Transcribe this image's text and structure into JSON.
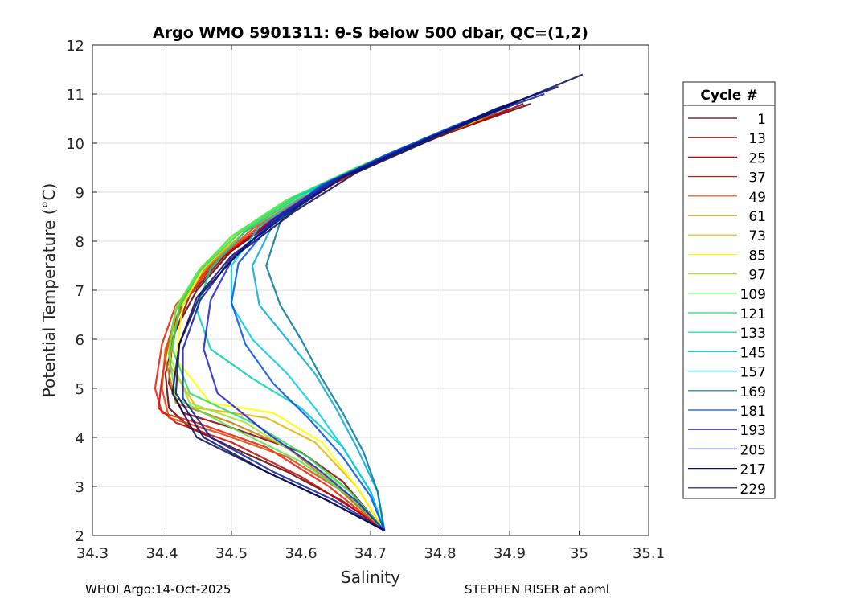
{
  "footer": {
    "left": "WHOI Argo:14-Oct-2025",
    "right": "STEPHEN RISER at aoml"
  },
  "chart_data": {
    "type": "line",
    "title": "Argo WMO 5901311: θ-S below 500 dbar,  QC=(1,2)",
    "xlabel": "Salinity",
    "ylabel": "Potential Temperature (°C)",
    "xlim": [
      34.3,
      35.1
    ],
    "ylim": [
      2,
      12
    ],
    "x_ticks": [
      "34.3",
      "34.4",
      "34.5",
      "34.6",
      "34.7",
      "34.8",
      "34.9",
      "35",
      "35.1"
    ],
    "y_ticks": [
      "2",
      "3",
      "4",
      "5",
      "6",
      "7",
      "8",
      "9",
      "10",
      "11",
      "12"
    ],
    "grid": true,
    "legend": {
      "title": "Cycle #",
      "placement": "right, outside plot",
      "entries": [
        {
          "label": "1",
          "color": "#5a0000"
        },
        {
          "label": "13",
          "color": "#8b0000"
        },
        {
          "label": "25",
          "color": "#c80000"
        },
        {
          "label": "37",
          "color": "#e61a00"
        },
        {
          "label": "49",
          "color": "#e64000"
        },
        {
          "label": "61",
          "color": "#c87800"
        },
        {
          "label": "73",
          "color": "#e6b400"
        },
        {
          "label": "85",
          "color": "#ffff00"
        },
        {
          "label": "97",
          "color": "#9ee632"
        },
        {
          "label": "109",
          "color": "#50e650"
        },
        {
          "label": "121",
          "color": "#28dc64"
        },
        {
          "label": "133",
          "color": "#00d2aa"
        },
        {
          "label": "145",
          "color": "#00cde6"
        },
        {
          "label": "157",
          "color": "#00aadc"
        },
        {
          "label": "169",
          "color": "#007896"
        },
        {
          "label": "181",
          "color": "#0050e6"
        },
        {
          "label": "193",
          "color": "#1e1ecd"
        },
        {
          "label": "205",
          "color": "#0a1ea0"
        },
        {
          "label": "217",
          "color": "#0a0a6e"
        },
        {
          "label": "229",
          "color": "#0a0a50"
        }
      ]
    },
    "series": [
      {
        "x": [
          34.93,
          34.85,
          34.75,
          34.65,
          34.57,
          34.5,
          34.45,
          34.42,
          34.405,
          34.41,
          34.44,
          34.5,
          34.58,
          34.66,
          34.72
        ],
        "y": [
          10.8,
          10.4,
          9.9,
          9.2,
          8.5,
          7.8,
          7.0,
          6.2,
          5.3,
          4.6,
          4.2,
          3.8,
          3.3,
          2.7,
          2.1
        ]
      },
      {
        "x": [
          34.92,
          34.84,
          34.74,
          34.64,
          34.56,
          34.49,
          34.44,
          34.415,
          34.41,
          34.43,
          34.5,
          34.6,
          34.66,
          34.72
        ],
        "y": [
          10.8,
          10.35,
          9.85,
          9.15,
          8.45,
          7.7,
          6.9,
          6.0,
          5.1,
          4.5,
          4.2,
          3.7,
          3.1,
          2.1
        ]
      },
      {
        "x": [
          34.9,
          34.82,
          34.72,
          34.63,
          34.55,
          34.48,
          34.43,
          34.41,
          34.4,
          34.395,
          34.42,
          34.5,
          34.6,
          34.68,
          34.72
        ],
        "y": [
          10.7,
          10.25,
          9.7,
          9.05,
          8.35,
          7.6,
          6.8,
          6.0,
          5.2,
          4.6,
          4.3,
          3.9,
          3.2,
          2.5,
          2.1
        ]
      },
      {
        "x": [
          34.88,
          34.8,
          34.7,
          34.62,
          34.54,
          34.47,
          34.42,
          34.4,
          34.39,
          34.4,
          34.45,
          34.55,
          34.64,
          34.72
        ],
        "y": [
          10.6,
          10.15,
          9.6,
          9.0,
          8.3,
          7.5,
          6.7,
          5.9,
          5.0,
          4.5,
          4.3,
          3.8,
          3.0,
          2.1
        ]
      },
      {
        "x": [
          34.87,
          34.79,
          34.7,
          34.61,
          34.53,
          34.47,
          34.43,
          34.405,
          34.4,
          34.41,
          34.48,
          34.58,
          34.66,
          34.72
        ],
        "y": [
          10.55,
          10.1,
          9.55,
          8.95,
          8.25,
          7.5,
          6.7,
          5.8,
          5.0,
          4.4,
          4.1,
          3.6,
          2.9,
          2.1
        ]
      },
      {
        "x": [
          34.86,
          34.78,
          34.69,
          34.6,
          34.52,
          34.46,
          34.42,
          34.405,
          34.42,
          34.5,
          34.58,
          34.65,
          34.72
        ],
        "y": [
          10.5,
          10.05,
          9.5,
          8.9,
          8.2,
          7.4,
          6.6,
          5.6,
          4.7,
          4.3,
          3.8,
          3.0,
          2.1
        ]
      },
      {
        "x": [
          34.86,
          34.78,
          34.69,
          34.6,
          34.52,
          34.46,
          34.425,
          34.41,
          34.45,
          34.55,
          34.62,
          34.68,
          34.72
        ],
        "y": [
          10.5,
          10.05,
          9.5,
          8.9,
          8.2,
          7.45,
          6.65,
          5.5,
          4.6,
          4.4,
          3.9,
          3.0,
          2.1
        ]
      },
      {
        "x": [
          34.85,
          34.77,
          34.68,
          34.59,
          34.51,
          34.46,
          34.43,
          34.42,
          34.47,
          34.56,
          34.63,
          34.68,
          34.72
        ],
        "y": [
          10.45,
          10.0,
          9.45,
          8.85,
          8.15,
          7.45,
          6.7,
          5.6,
          4.7,
          4.5,
          3.9,
          3.0,
          2.1
        ]
      },
      {
        "x": [
          34.85,
          34.77,
          34.68,
          34.59,
          34.51,
          34.455,
          34.42,
          34.41,
          34.44,
          34.52,
          34.6,
          34.67,
          34.72
        ],
        "y": [
          10.5,
          10.05,
          9.5,
          8.9,
          8.2,
          7.45,
          6.65,
          5.7,
          4.7,
          4.3,
          3.6,
          2.9,
          2.1
        ]
      },
      {
        "x": [
          34.86,
          34.78,
          34.68,
          34.58,
          34.5,
          34.45,
          34.42,
          34.41,
          34.42,
          34.5,
          34.6,
          34.67,
          34.72
        ],
        "y": [
          10.55,
          10.1,
          9.5,
          8.85,
          8.1,
          7.35,
          6.6,
          5.7,
          4.8,
          4.2,
          3.5,
          2.8,
          2.1
        ]
      },
      {
        "x": [
          34.87,
          34.79,
          34.69,
          34.59,
          34.51,
          34.455,
          34.425,
          34.415,
          34.44,
          34.53,
          34.61,
          34.67,
          34.72
        ],
        "y": [
          10.6,
          10.15,
          9.55,
          8.9,
          8.15,
          7.4,
          6.65,
          5.8,
          4.9,
          4.3,
          3.6,
          2.9,
          2.1
        ]
      },
      {
        "x": [
          34.88,
          34.8,
          34.7,
          34.6,
          34.52,
          34.47,
          34.45,
          34.47,
          34.53,
          34.6,
          34.66,
          34.7,
          34.72
        ],
        "y": [
          10.65,
          10.2,
          9.6,
          8.95,
          8.2,
          7.45,
          6.6,
          5.8,
          5.2,
          4.6,
          3.8,
          2.9,
          2.1
        ]
      },
      {
        "x": [
          34.89,
          34.81,
          34.71,
          34.61,
          34.54,
          34.5,
          34.5,
          34.53,
          34.58,
          34.62,
          34.66,
          34.7,
          34.72
        ],
        "y": [
          10.7,
          10.25,
          9.65,
          9.0,
          8.3,
          7.5,
          6.7,
          6.0,
          5.3,
          4.6,
          3.8,
          2.9,
          2.1
        ]
      },
      {
        "x": [
          34.9,
          34.82,
          34.72,
          34.62,
          34.56,
          34.53,
          34.54,
          34.58,
          34.62,
          34.65,
          34.68,
          34.71,
          34.72
        ],
        "y": [
          10.75,
          10.3,
          9.7,
          9.05,
          8.35,
          7.5,
          6.7,
          6.0,
          5.3,
          4.6,
          3.8,
          2.9,
          2.1
        ]
      },
      {
        "x": [
          34.9,
          34.82,
          34.72,
          34.63,
          34.57,
          34.55,
          34.57,
          34.6,
          34.63,
          34.66,
          34.69,
          34.71,
          34.72
        ],
        "y": [
          10.8,
          10.35,
          9.75,
          9.1,
          8.4,
          7.5,
          6.7,
          6.0,
          5.2,
          4.5,
          3.7,
          2.9,
          2.1
        ]
      },
      {
        "x": [
          34.91,
          34.83,
          34.73,
          34.63,
          34.56,
          34.51,
          34.5,
          34.52,
          34.56,
          34.61,
          34.66,
          34.7,
          34.72
        ],
        "y": [
          10.85,
          10.4,
          9.8,
          9.15,
          8.4,
          7.55,
          6.75,
          5.9,
          5.1,
          4.4,
          3.6,
          2.8,
          2.1
        ]
      },
      {
        "x": [
          34.92,
          34.84,
          34.74,
          34.64,
          34.56,
          34.5,
          34.47,
          34.46,
          34.48,
          34.55,
          34.62,
          34.68,
          34.72
        ],
        "y": [
          10.9,
          10.45,
          9.85,
          9.2,
          8.45,
          7.6,
          6.8,
          5.8,
          4.9,
          4.1,
          3.4,
          2.7,
          2.1
        ]
      },
      {
        "x": [
          34.95,
          34.86,
          34.75,
          34.65,
          34.57,
          34.5,
          34.455,
          34.43,
          34.43,
          34.47,
          34.56,
          34.65,
          34.72
        ],
        "y": [
          11.0,
          10.55,
          9.9,
          9.25,
          8.5,
          7.65,
          6.8,
          5.8,
          4.8,
          4.0,
          3.3,
          2.7,
          2.1
        ]
      },
      {
        "x": [
          34.97,
          34.88,
          34.77,
          34.66,
          34.58,
          34.5,
          34.45,
          34.425,
          34.42,
          34.46,
          34.55,
          34.64,
          34.72
        ],
        "y": [
          11.15,
          10.7,
          10.0,
          9.3,
          8.55,
          7.7,
          6.85,
          5.9,
          4.9,
          4.0,
          3.3,
          2.7,
          2.1
        ]
      },
      {
        "x": [
          35.005,
          34.92,
          34.8,
          34.68,
          34.59,
          34.51,
          34.455,
          34.425,
          34.415,
          34.45,
          34.55,
          34.64,
          34.72
        ],
        "y": [
          11.4,
          10.9,
          10.15,
          9.4,
          8.6,
          7.75,
          6.9,
          5.9,
          4.9,
          4.0,
          3.3,
          2.7,
          2.1
        ]
      }
    ]
  }
}
